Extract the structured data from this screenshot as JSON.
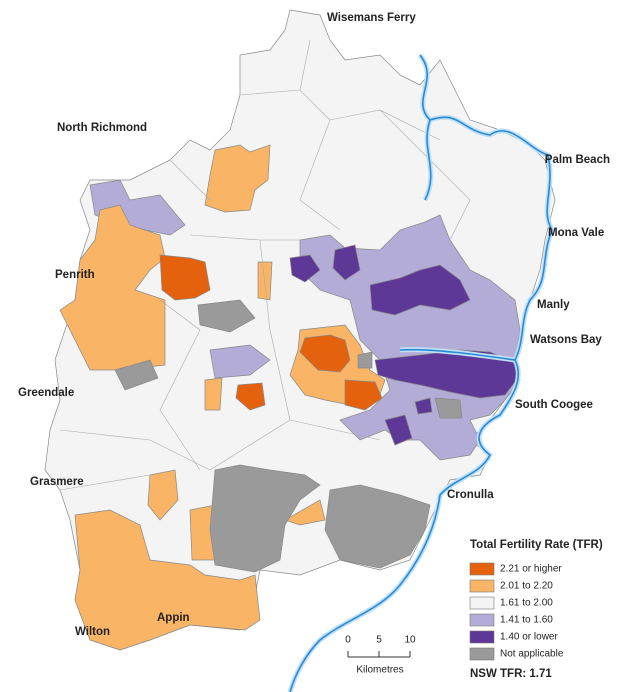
{
  "map": {
    "places": [
      "Wisemans Ferry",
      "North Richmond",
      "Palm Beach",
      "Mona Vale",
      "Penrith",
      "Manly",
      "Watsons Bay",
      "Greendale",
      "South Coogee",
      "Grasmere",
      "Cronulla",
      "Wilton",
      "Appin"
    ],
    "legend": {
      "title": "Total Fertility Rate (TFR)",
      "items": [
        {
          "label": "2.21 or higher",
          "color": "#e4620e"
        },
        {
          "label": "2.01 to 2.20",
          "color": "#f9b466"
        },
        {
          "label": "1.61 to 2.00",
          "color": "#f4f4f4"
        },
        {
          "label": "1.41 to 1.60",
          "color": "#b3acd6"
        },
        {
          "label": "1.40 or lower",
          "color": "#5e3896"
        },
        {
          "label": "Not applicable",
          "color": "#9a9a9a"
        }
      ]
    },
    "scale": {
      "ticks": [
        0,
        5,
        10
      ],
      "unit": "Kilometres"
    },
    "note": "NSW TFR: 1.71"
  }
}
